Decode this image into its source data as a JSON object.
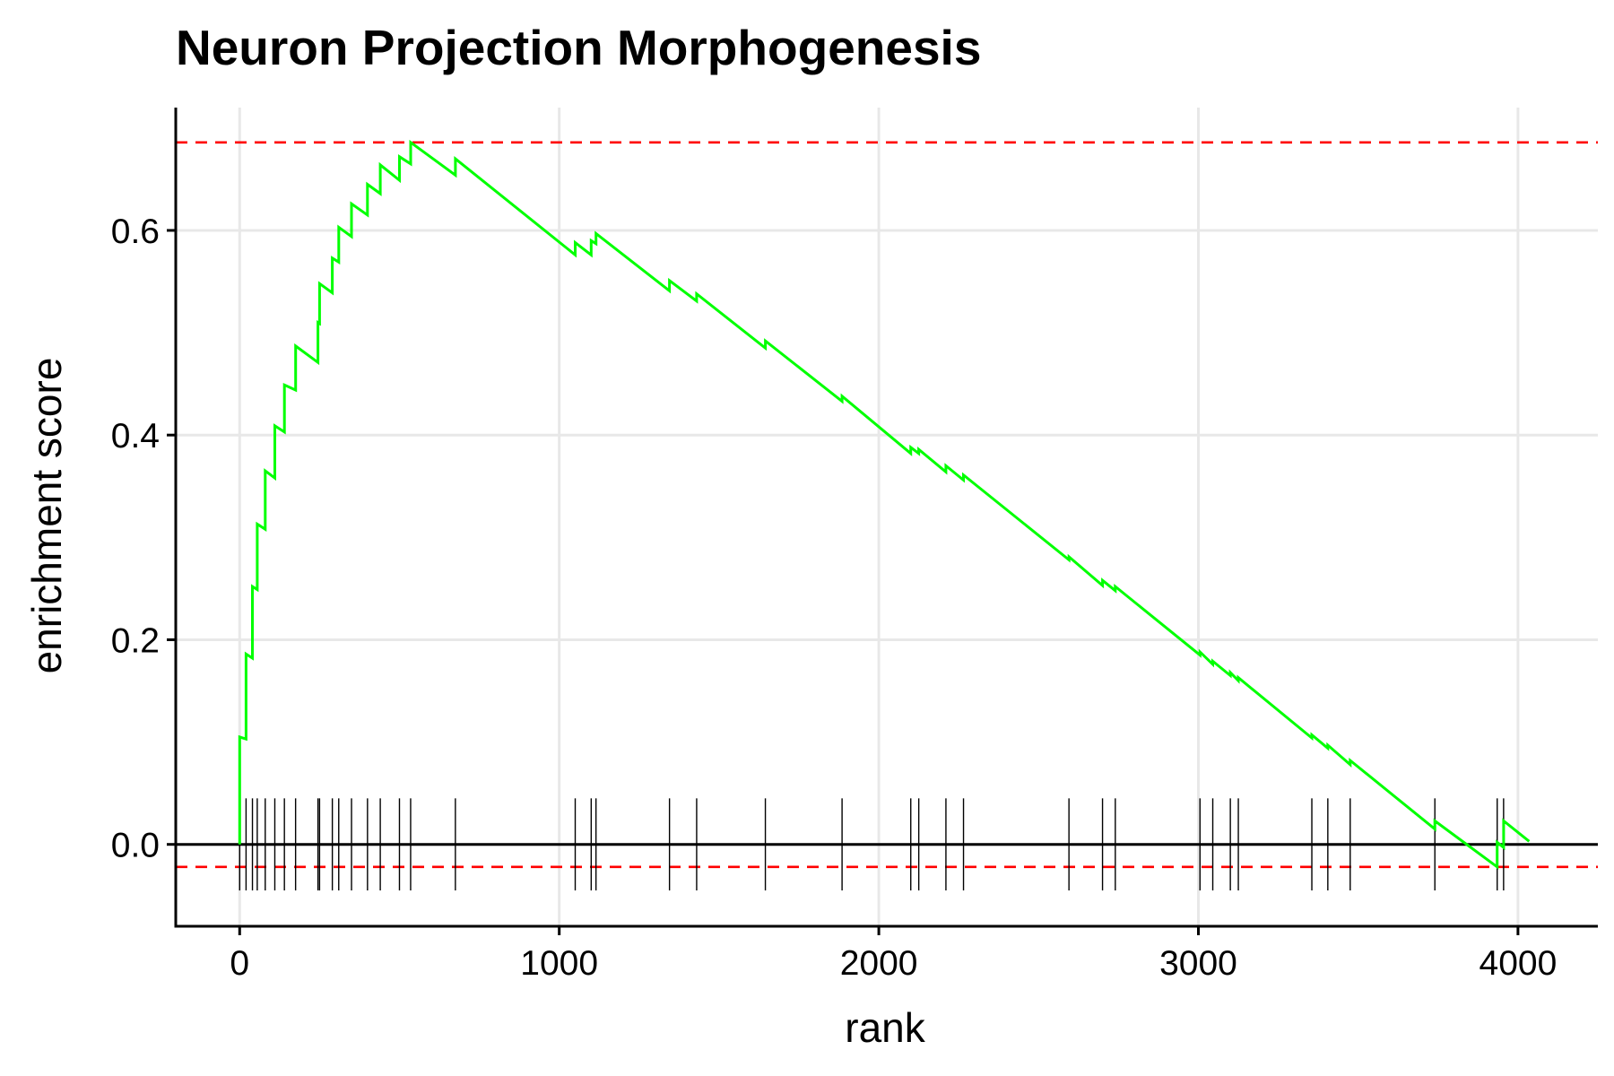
{
  "chart_data": {
    "type": "line",
    "title": "Neuron Projection Morphogenesis",
    "xlabel": "rank",
    "ylabel": "enrichment score",
    "xlim": [
      -200,
      4250
    ],
    "ylim": [
      -0.08,
      0.72
    ],
    "x_ticks": [
      0,
      1000,
      2000,
      3000,
      4000
    ],
    "x_tick_labels": [
      "0",
      "1000",
      "2000",
      "3000",
      "4000"
    ],
    "y_ticks": [
      0.0,
      0.2,
      0.4,
      0.6
    ],
    "y_tick_labels": [
      "0.0",
      "0.2",
      "0.4",
      "0.6"
    ],
    "grid": true,
    "colors": {
      "es_line": "#00ff00",
      "threshold": "#ff0000",
      "hits": "#000000",
      "grid": "#e8e8e8"
    },
    "thresholds": {
      "max_es": 0.686,
      "min_es": -0.022
    },
    "hits": [
      0,
      20,
      40,
      55,
      80,
      110,
      140,
      175,
      245,
      250,
      290,
      310,
      350,
      400,
      440,
      500,
      535,
      675,
      1050,
      1100,
      1115,
      1345,
      1430,
      1645,
      1885,
      2100,
      2125,
      2210,
      2265,
      2595,
      2700,
      2740,
      3005,
      3045,
      3100,
      3125,
      3355,
      3405,
      3475,
      3740,
      3935,
      3955
    ],
    "series": [
      {
        "x": [
          0,
          0,
          20,
          20,
          40,
          40,
          55,
          55,
          80,
          80,
          110,
          110,
          140,
          140,
          175,
          175,
          245,
          245,
          250,
          250,
          290,
          290,
          310,
          310,
          350,
          350,
          400,
          400,
          440,
          440,
          500,
          500,
          535,
          535,
          675,
          675,
          1050,
          1050,
          1100,
          1100,
          1115,
          1115,
          1345,
          1345,
          1430,
          1430,
          1645,
          1645,
          1885,
          1885,
          2100,
          2100,
          2125,
          2125,
          2210,
          2210,
          2265,
          2265,
          2595,
          2595,
          2700,
          2700,
          2740,
          2740,
          3005,
          3005,
          3045,
          3045,
          3100,
          3100,
          3125,
          3125,
          3355,
          3355,
          3405,
          3405,
          3475,
          3475,
          3740,
          3740,
          3935,
          3935,
          3955,
          3955,
          4035
        ],
        "values": [
          0.0,
          0.105,
          0.103,
          0.186,
          0.182,
          0.252,
          0.249,
          0.313,
          0.308,
          0.365,
          0.358,
          0.409,
          0.403,
          0.449,
          0.444,
          0.487,
          0.471,
          0.51,
          0.509,
          0.548,
          0.539,
          0.573,
          0.569,
          0.603,
          0.594,
          0.626,
          0.615,
          0.645,
          0.636,
          0.664,
          0.649,
          0.672,
          0.665,
          0.686,
          0.654,
          0.67,
          0.576,
          0.588,
          0.576,
          0.59,
          0.587,
          0.597,
          0.541,
          0.551,
          0.531,
          0.538,
          0.485,
          0.492,
          0.433,
          0.438,
          0.382,
          0.388,
          0.382,
          0.386,
          0.364,
          0.37,
          0.356,
          0.361,
          0.278,
          0.281,
          0.253,
          0.258,
          0.248,
          0.252,
          0.185,
          0.188,
          0.176,
          0.179,
          0.165,
          0.168,
          0.16,
          0.163,
          0.104,
          0.107,
          0.094,
          0.097,
          0.078,
          0.082,
          0.015,
          0.023,
          -0.022,
          0.002,
          -0.003,
          0.023,
          0.003
        ]
      }
    ]
  }
}
